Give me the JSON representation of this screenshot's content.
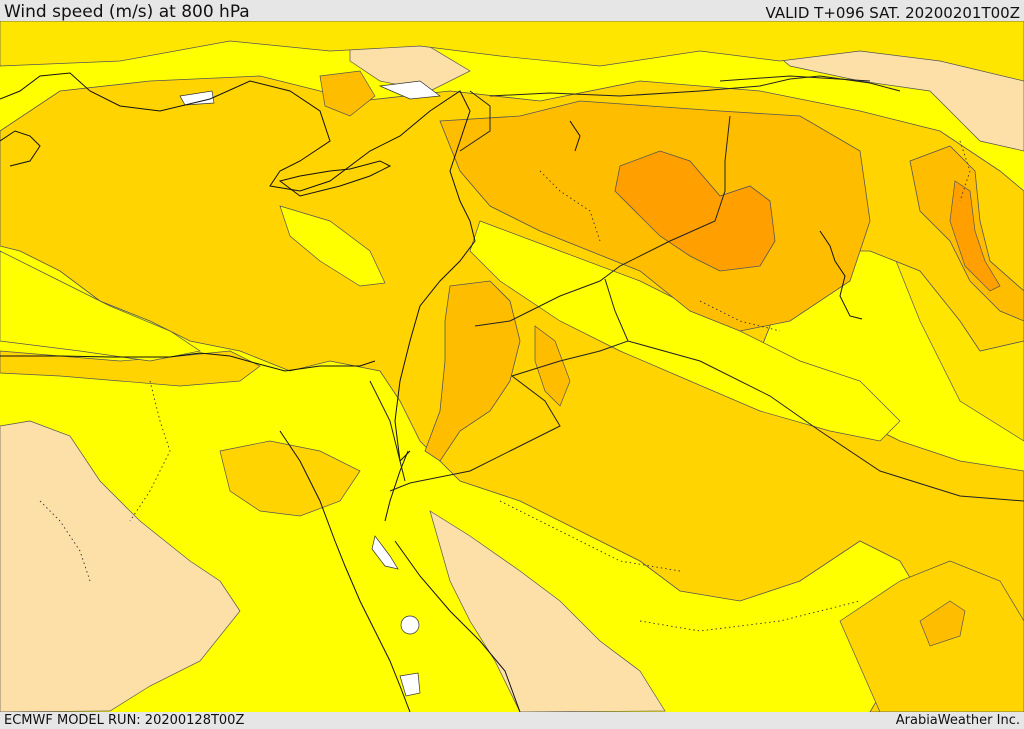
{
  "header": {
    "title": "Wind speed (m/s) at 800 hPa",
    "valid": "VALID T+096 SAT. 20200201T00Z"
  },
  "footer": {
    "model_run": "ECMWF MODEL RUN: 20200128T00Z",
    "credit": "ArabiaWeather Inc."
  },
  "palette": {
    "tan": "#fde0a8",
    "yellow": "#ffff00",
    "light_gold": "#ffe600",
    "gold": "#ffd400",
    "orange": "#ffbd00",
    "dark_orange": "#ffa000",
    "water": "#ffffff",
    "line": "#333333"
  }
}
